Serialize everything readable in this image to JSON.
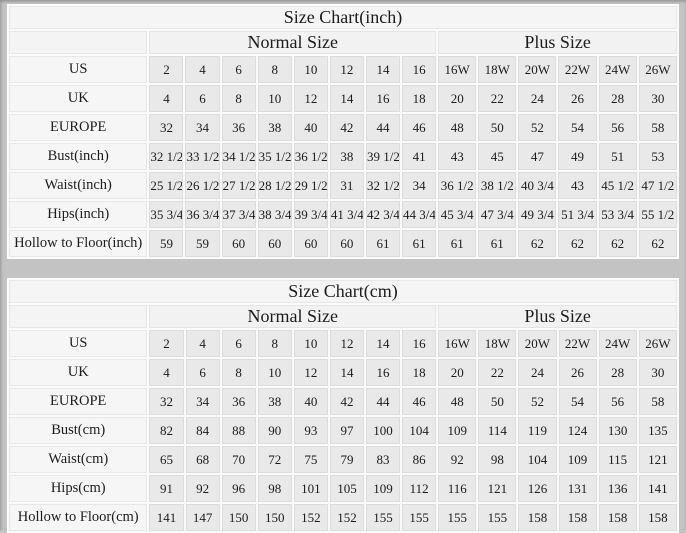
{
  "page": {
    "background_color": "#c3c3c3",
    "cell_color": "#e9e9e9",
    "header_cell_color": "#f5f5f5"
  },
  "layout": {
    "normal_columns": 8,
    "plus_columns": 6,
    "total_columns": 15
  },
  "tables": [
    {
      "title": "Size Chart(inch)",
      "groups": [
        {
          "label": "Normal Size",
          "span": 8
        },
        {
          "label": "Plus Size",
          "span": 6
        }
      ],
      "rows": [
        {
          "label": "US",
          "values": [
            "2",
            "4",
            "6",
            "8",
            "10",
            "12",
            "14",
            "16",
            "16W",
            "18W",
            "20W",
            "22W",
            "24W",
            "26W"
          ]
        },
        {
          "label": "UK",
          "values": [
            "4",
            "6",
            "8",
            "10",
            "12",
            "14",
            "16",
            "18",
            "20",
            "22",
            "24",
            "26",
            "28",
            "30"
          ]
        },
        {
          "label": "EUROPE",
          "values": [
            "32",
            "34",
            "36",
            "38",
            "40",
            "42",
            "44",
            "46",
            "48",
            "50",
            "52",
            "54",
            "56",
            "58"
          ]
        },
        {
          "label": "Bust(inch)",
          "values": [
            "32 1/2",
            "33 1/2",
            "34 1/2",
            "35 1/2",
            "36 1/2",
            "38",
            "39 1/2",
            "41",
            "43",
            "45",
            "47",
            "49",
            "51",
            "53"
          ]
        },
        {
          "label": "Waist(inch)",
          "values": [
            "25 1/2",
            "26 1/2",
            "27 1/2",
            "28 1/2",
            "29 1/2",
            "31",
            "32 1/2",
            "34",
            "36 1/2",
            "38 1/2",
            "40 3/4",
            "43",
            "45 1/2",
            "47 1/2"
          ]
        },
        {
          "label": "Hips(inch)",
          "values": [
            "35 3/4",
            "36 3/4",
            "37 3/4",
            "38 3/4",
            "39 3/4",
            "41 3/4",
            "42 3/4",
            "44 3/4",
            "45 3/4",
            "47 3/4",
            "49 3/4",
            "51 3/4",
            "53 3/4",
            "55 1/2"
          ]
        },
        {
          "label": "Hollow to Floor(inch)",
          "values": [
            "59",
            "59",
            "60",
            "60",
            "60",
            "60",
            "61",
            "61",
            "61",
            "61",
            "62",
            "62",
            "62",
            "62"
          ]
        }
      ]
    },
    {
      "title": "Size Chart(cm)",
      "groups": [
        {
          "label": "Normal Size",
          "span": 8
        },
        {
          "label": "Plus Size",
          "span": 6
        }
      ],
      "rows": [
        {
          "label": "US",
          "values": [
            "2",
            "4",
            "6",
            "8",
            "10",
            "12",
            "14",
            "16",
            "16W",
            "18W",
            "20W",
            "22W",
            "24W",
            "26W"
          ]
        },
        {
          "label": "UK",
          "values": [
            "4",
            "6",
            "8",
            "10",
            "12",
            "14",
            "16",
            "18",
            "20",
            "22",
            "24",
            "26",
            "28",
            "30"
          ]
        },
        {
          "label": "EUROPE",
          "values": [
            "32",
            "34",
            "36",
            "38",
            "40",
            "42",
            "44",
            "46",
            "48",
            "50",
            "52",
            "54",
            "56",
            "58"
          ]
        },
        {
          "label": "Bust(cm)",
          "values": [
            "82",
            "84",
            "88",
            "90",
            "93",
            "97",
            "100",
            "104",
            "109",
            "114",
            "119",
            "124",
            "130",
            "135"
          ]
        },
        {
          "label": "Waist(cm)",
          "values": [
            "65",
            "68",
            "70",
            "72",
            "75",
            "79",
            "83",
            "86",
            "92",
            "98",
            "104",
            "109",
            "115",
            "121"
          ]
        },
        {
          "label": "Hips(cm)",
          "values": [
            "91",
            "92",
            "96",
            "98",
            "101",
            "105",
            "109",
            "112",
            "116",
            "121",
            "126",
            "131",
            "136",
            "141"
          ]
        },
        {
          "label": "Hollow to Floor(cm)",
          "values": [
            "141",
            "147",
            "150",
            "150",
            "152",
            "152",
            "155",
            "155",
            "155",
            "155",
            "158",
            "158",
            "158",
            "158"
          ]
        }
      ]
    }
  ]
}
